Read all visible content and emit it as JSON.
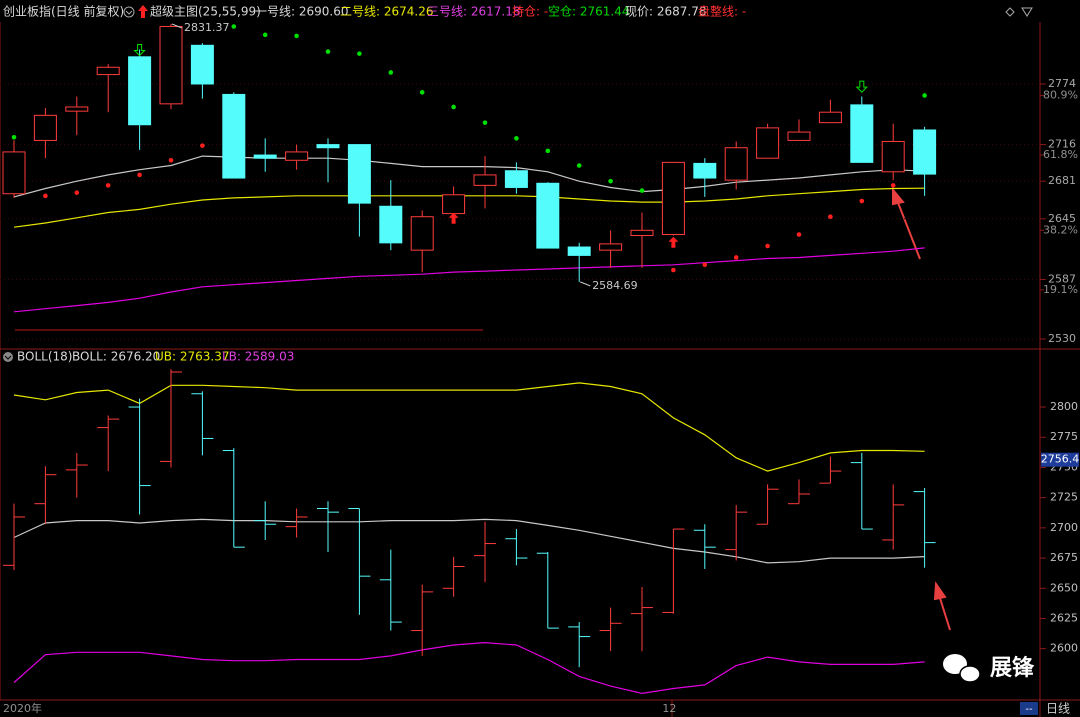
{
  "header": {
    "items": [
      {
        "text": "创业板指(日线 前复权)",
        "color": "#d8d8d8"
      },
      {
        "text": "超级主图(25,55,99)",
        "color": "#d8d8d8"
      },
      {
        "text": "一号线: 2690.60",
        "color": "#d8d8d8"
      },
      {
        "text": "二号线: 2674.26",
        "color": "#e8e800"
      },
      {
        "text": "三号线: 2617.18",
        "color": "#e040e0"
      },
      {
        "text": "持仓: -",
        "color": "#ff3030"
      },
      {
        "text": "空仓: 2761.44",
        "color": "#00d800"
      },
      {
        "text": "现价: 2687.78",
        "color": "#d8d8d8"
      },
      {
        "text": "盘整线: -",
        "color": "#ff3030"
      }
    ],
    "boll_items": [
      {
        "text": "BOLL(18)",
        "color": "#d8d8d8"
      },
      {
        "text": "BOLL: 2676.20",
        "color": "#d8d8d8"
      },
      {
        "text": "UB: 2763.37",
        "color": "#e8e800"
      },
      {
        "text": "LB: 2589.03",
        "color": "#e040e0"
      }
    ]
  },
  "chart_data": [
    {
      "type": "candlestick",
      "up_color": "#ff3c3c",
      "down_color": "#54fcfc",
      "ylim": [
        2521.4,
        2833.3
      ],
      "yticks": [
        2774,
        2716,
        2681,
        2645,
        2587,
        2530
      ],
      "y_pct_ticks": [
        {
          "value": 2763,
          "label": "80.9%"
        },
        {
          "value": 2706,
          "label": "61.8%"
        },
        {
          "value": 2634,
          "label": "38.2%"
        },
        {
          "value": 2577,
          "label": "19.1%"
        }
      ],
      "open": [
        2669,
        2720,
        2748,
        2783,
        2800,
        2755,
        2811,
        2764,
        2706,
        2701,
        2716,
        2716,
        2657,
        2615,
        2650,
        2677,
        2691,
        2679,
        2618,
        2615,
        2629,
        2630,
        2698,
        2682,
        2703,
        2720,
        2737,
        2754,
        2690,
        2730
      ],
      "high": [
        2720,
        2751,
        2762,
        2793,
        2807,
        2831.37,
        2813,
        2766,
        2722,
        2716,
        2722,
        2716,
        2682,
        2653,
        2676,
        2705,
        2699,
        2680,
        2622,
        2634,
        2651,
        2699,
        2703,
        2719,
        2736,
        2740,
        2759,
        2762,
        2736,
        2733
      ],
      "low": [
        2665,
        2703,
        2725,
        2747,
        2711,
        2750,
        2760,
        2684,
        2690,
        2692,
        2680,
        2628,
        2615,
        2594,
        2643,
        2655,
        2669,
        2617,
        2584.69,
        2598,
        2598,
        2629,
        2666,
        2673,
        2703,
        2720,
        2737,
        2699,
        2682,
        2667
      ],
      "close": [
        2709,
        2744,
        2752,
        2790,
        2735,
        2829,
        2774,
        2684,
        2703,
        2709,
        2713,
        2660,
        2622,
        2647,
        2668,
        2687,
        2675,
        2617,
        2610,
        2621,
        2634,
        2699,
        2684,
        2713,
        2732,
        2728,
        2747,
        2699,
        2719,
        2687.78
      ],
      "series": [
        {
          "color": "#c8c8c8",
          "values": [
            2666,
            2674,
            2681,
            2687,
            2692,
            2696,
            2705,
            2704,
            2703,
            2703,
            2703,
            2701,
            2698,
            2695,
            2695,
            2695,
            2694,
            2690,
            2681,
            2675,
            2671,
            2673,
            2676,
            2680,
            2682,
            2684,
            2687,
            2690,
            2692,
            2690.6
          ]
        },
        {
          "color": "#e6e600",
          "values": [
            2637,
            2641,
            2646,
            2651,
            2654,
            2659,
            2663,
            2665,
            2666,
            2667,
            2667,
            2667,
            2667,
            2667,
            2667,
            2667,
            2667,
            2666,
            2664,
            2662,
            2661,
            2661,
            2662,
            2664,
            2667,
            2669,
            2671,
            2673,
            2674,
            2674.26
          ]
        },
        {
          "color": "#e000e0",
          "values": [
            2556,
            2559,
            2562,
            2565,
            2569,
            2575,
            2580,
            2582,
            2584,
            2586,
            2588,
            2590,
            2591,
            2592,
            2594,
            2595,
            2596,
            2597,
            2598,
            2599,
            2600,
            2601,
            2603,
            2605,
            2607,
            2608,
            2610,
            2612,
            2614,
            2617.18
          ]
        }
      ],
      "sar": [
        {
          "color": "#ff2020",
          "values": [
            null,
            2667,
            2670,
            2677,
            2687,
            2701,
            2715,
            null,
            null,
            null,
            null,
            null,
            null,
            null,
            null,
            null,
            null,
            null,
            null,
            null,
            null,
            2596,
            2601,
            2608,
            2619,
            2630,
            2647,
            2662,
            2677,
            null
          ]
        },
        {
          "color": "#00e000",
          "values": [
            2723,
            null,
            null,
            null,
            null,
            null,
            null,
            2829,
            2821,
            2820,
            2805,
            2803,
            2785,
            2766,
            2752,
            2737,
            2722,
            2710,
            2696,
            2681,
            2672,
            null,
            null,
            null,
            null,
            null,
            null,
            null,
            null,
            2763
          ]
        }
      ],
      "sell_signals": {
        "color": "#00e000",
        "values": [
          null,
          null,
          null,
          null,
          2806,
          null,
          null,
          null,
          null,
          null,
          null,
          null,
          null,
          null,
          null,
          null,
          null,
          null,
          null,
          null,
          null,
          null,
          null,
          null,
          null,
          null,
          null,
          2771,
          null,
          null
        ]
      },
      "buy_signals": {
        "color": "#ff2020",
        "values": [
          null,
          null,
          null,
          null,
          null,
          null,
          null,
          null,
          null,
          null,
          null,
          null,
          null,
          null,
          2646,
          null,
          null,
          null,
          null,
          null,
          null,
          2623,
          null,
          null,
          null,
          null,
          null,
          null,
          null,
          null
        ]
      },
      "annotations": [
        2831.37,
        2584.69
      ]
    },
    {
      "type": "boll",
      "ylim": [
        2557.5,
        2834.8
      ],
      "yticks": [
        2800,
        2775,
        2750,
        2725,
        2700,
        2675,
        2650,
        2625,
        2600
      ],
      "categories": [
        "2020年",
        null,
        null,
        null,
        null,
        null,
        null,
        null,
        null,
        null,
        null,
        null,
        null,
        null,
        null,
        null,
        null,
        null,
        null,
        null,
        null,
        "12",
        null,
        null,
        null,
        null,
        null,
        null,
        null,
        null
      ],
      "series": [
        {
          "color": "#e6e600",
          "values": [
            2810,
            2806,
            2812,
            2814,
            2803,
            2818,
            2818,
            2817,
            2816,
            2814,
            2814,
            2814,
            2814,
            2814,
            2814,
            2814,
            2814,
            2817,
            2820,
            2817,
            2811,
            2791,
            2777,
            2758,
            2747,
            2754,
            2762,
            2764,
            2764,
            2763.37
          ]
        },
        {
          "color": "#c8c8c8",
          "values": [
            2692,
            2704,
            2706,
            2706,
            2704,
            2706,
            2707,
            2706,
            2706,
            2705,
            2705,
            2705,
            2706,
            2706,
            2706,
            2707,
            2706,
            2702,
            2698,
            2693,
            2688,
            2683,
            2680,
            2676,
            2671,
            2672,
            2675,
            2675,
            2675,
            2676.2
          ]
        },
        {
          "color": "#e000e0",
          "values": [
            2572,
            2595,
            2597,
            2597,
            2597,
            2594,
            2591,
            2590,
            2590,
            2591,
            2591,
            2591,
            2594,
            2599,
            2603,
            2605,
            2603,
            2591,
            2577,
            2569,
            2563,
            2567,
            2570,
            2586,
            2593,
            2589,
            2587,
            2587,
            2587,
            2589.03
          ]
        }
      ],
      "marker": 2756.4
    }
  ],
  "footer": {
    "period": "日线",
    "box": "--"
  },
  "watermark": "展锋"
}
